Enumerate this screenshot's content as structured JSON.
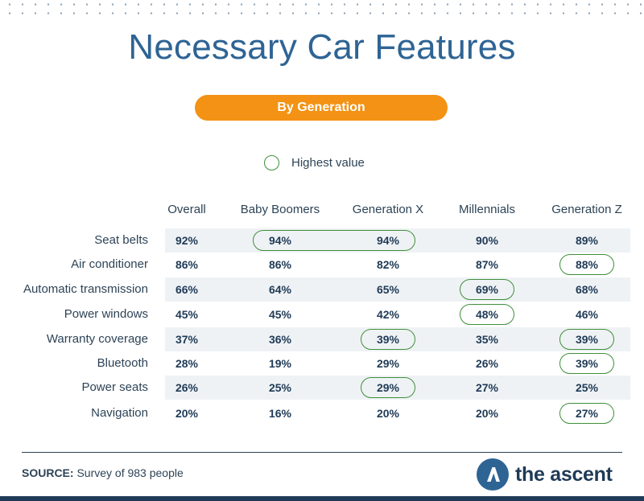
{
  "title": "Necessary Car Features",
  "subtitle": "By Generation",
  "legend": {
    "label": "Highest value"
  },
  "source": {
    "prefix": "SOURCE:",
    "text": " Survey of 983 people"
  },
  "brand": {
    "name": "the ascent"
  },
  "colors": {
    "title": "#2e6494",
    "pill": "#f39214",
    "highlight": "#3f8f3a",
    "row_bg": "#eff2f5",
    "text": "#1f3a56"
  },
  "chart_data": {
    "type": "table",
    "title": "Necessary Car Features",
    "subtitle": "By Generation",
    "columns": [
      "Overall",
      "Baby Boomers",
      "Generation X",
      "Millennials",
      "Generation Z"
    ],
    "rows": [
      {
        "label": "Seat belts",
        "values": [
          "92%",
          "94%",
          "94%",
          "90%",
          "89%"
        ],
        "highlight": [
          1,
          2
        ]
      },
      {
        "label": "Air conditioner",
        "values": [
          "86%",
          "86%",
          "82%",
          "87%",
          "88%"
        ],
        "highlight": [
          4
        ]
      },
      {
        "label": "Automatic transmission",
        "values": [
          "66%",
          "64%",
          "65%",
          "69%",
          "68%"
        ],
        "highlight": [
          3
        ]
      },
      {
        "label": "Power windows",
        "values": [
          "45%",
          "45%",
          "42%",
          "48%",
          "46%"
        ],
        "highlight": [
          3
        ]
      },
      {
        "label": "Warranty coverage",
        "values": [
          "37%",
          "36%",
          "39%",
          "35%",
          "39%"
        ],
        "highlight": [
          2,
          4
        ]
      },
      {
        "label": "Bluetooth",
        "values": [
          "28%",
          "19%",
          "29%",
          "26%",
          "39%"
        ],
        "highlight": [
          4
        ]
      },
      {
        "label": "Power seats",
        "values": [
          "26%",
          "25%",
          "29%",
          "27%",
          "25%"
        ],
        "highlight": [
          2
        ]
      },
      {
        "label": "Navigation",
        "values": [
          "20%",
          "16%",
          "20%",
          "20%",
          "27%"
        ],
        "highlight": [
          4
        ]
      }
    ]
  }
}
